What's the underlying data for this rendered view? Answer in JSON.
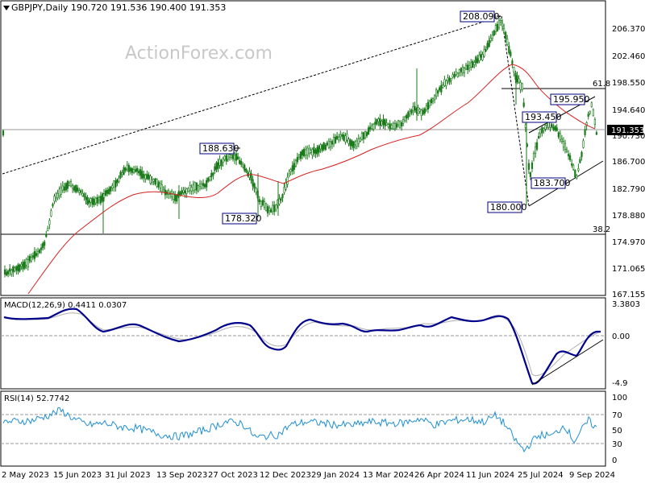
{
  "header": {
    "symbol_line": "GBPJPY,Daily  190.720 191.536 190.400 191.353"
  },
  "watermark": "ActionForex.com",
  "price_panel": {
    "y_ticks": [
      "206.370",
      "202.460",
      "198.550",
      "194.640",
      "190.730",
      "186.700",
      "182.790",
      "178.880",
      "174.970",
      "171.065",
      "167.155"
    ],
    "current_price_label": "191.353",
    "fib_labels": [
      "61.8",
      "38.2"
    ],
    "annotations": [
      "208.090",
      "188.630",
      "178.320",
      "193.450",
      "195.950",
      "183.700",
      "180.000"
    ]
  },
  "macd_panel": {
    "title": "MACD(12,26,9) 0.4411 0.0307",
    "y_ticks": [
      "3.3803",
      "0.00",
      "-4.9"
    ]
  },
  "rsi_panel": {
    "title": "RSI(14) 52.7742",
    "y_ticks": [
      "100",
      "70",
      "50",
      "30",
      "0"
    ]
  },
  "x_axis": {
    "labels": [
      "2 May 2023",
      "15 Jun 2023",
      "31 Jul 2023",
      "13 Sep 2023",
      "27 Oct 2023",
      "12 Dec 2023",
      "29 Jan 2024",
      "13 Mar 2024",
      "26 Apr 2024",
      "11 Jun 2024",
      "25 Jul 2024",
      "9 Sep 2024"
    ]
  },
  "colors": {
    "candle": "#1a7a1a",
    "moving_average": "#d62020",
    "macd_line": "#00008b",
    "signal_line": "#b0b0b0",
    "rsi_line": "#1e8fd6",
    "label_border": "#000080"
  },
  "chart_data": [
    {
      "type": "candlestick",
      "title": "GBPJPY,Daily",
      "ylim": [
        167.155,
        206.37
      ],
      "x_range": [
        "2 May 2023",
        "9 Sep 2024"
      ],
      "series": [
        {
          "name": "price",
          "points": [
            [
              "2 May 2023",
              170.0
            ],
            [
              "15 Jun 2023",
              180.0
            ],
            [
              "31 Jul 2023",
              182.0
            ],
            [
              "13 Sep 2023",
              183.5
            ],
            [
              "27 Oct 2023",
              188.6
            ],
            [
              "Nov 2023",
              178.3
            ],
            [
              "12 Dec 2023",
              181.0
            ],
            [
              "29 Jan 2024",
              188.0
            ],
            [
              "13 Mar 2024",
              190.5
            ],
            [
              "26 Apr 2024",
              193.5
            ],
            [
              "11 Jun 2024",
              199.0
            ],
            [
              "Jul 2024",
              208.09
            ],
            [
              "25 Jul 2024",
              195.0
            ],
            [
              "Aug 2024",
              180.0
            ],
            [
              "Aug 2024",
              193.45
            ],
            [
              "Sep 2024",
              183.7
            ],
            [
              "9 Sep 2024",
              195.95
            ],
            [
              "Sep 2024",
              191.353
            ]
          ]
        }
      ],
      "fib_levels": [
        {
          "label": "61.8",
          "value": 197.5
        },
        {
          "label": "38.2",
          "value": 175.9
        }
      ],
      "key_levels": [
        208.09,
        188.63,
        178.32,
        193.45,
        195.95,
        183.7,
        180.0
      ]
    },
    {
      "type": "line",
      "title": "MACD(12,26,9) 0.4411 0.0307",
      "ylim": [
        -4.9,
        3.3803
      ],
      "series": [
        {
          "name": "MACD",
          "last": 0.4411
        },
        {
          "name": "Signal",
          "last": 0.0307
        }
      ]
    },
    {
      "type": "line",
      "title": "RSI(14) 52.7742",
      "ylim": [
        0,
        100
      ],
      "levels": [
        70,
        30
      ],
      "series": [
        {
          "name": "RSI(14)",
          "last": 52.7742
        }
      ]
    }
  ]
}
